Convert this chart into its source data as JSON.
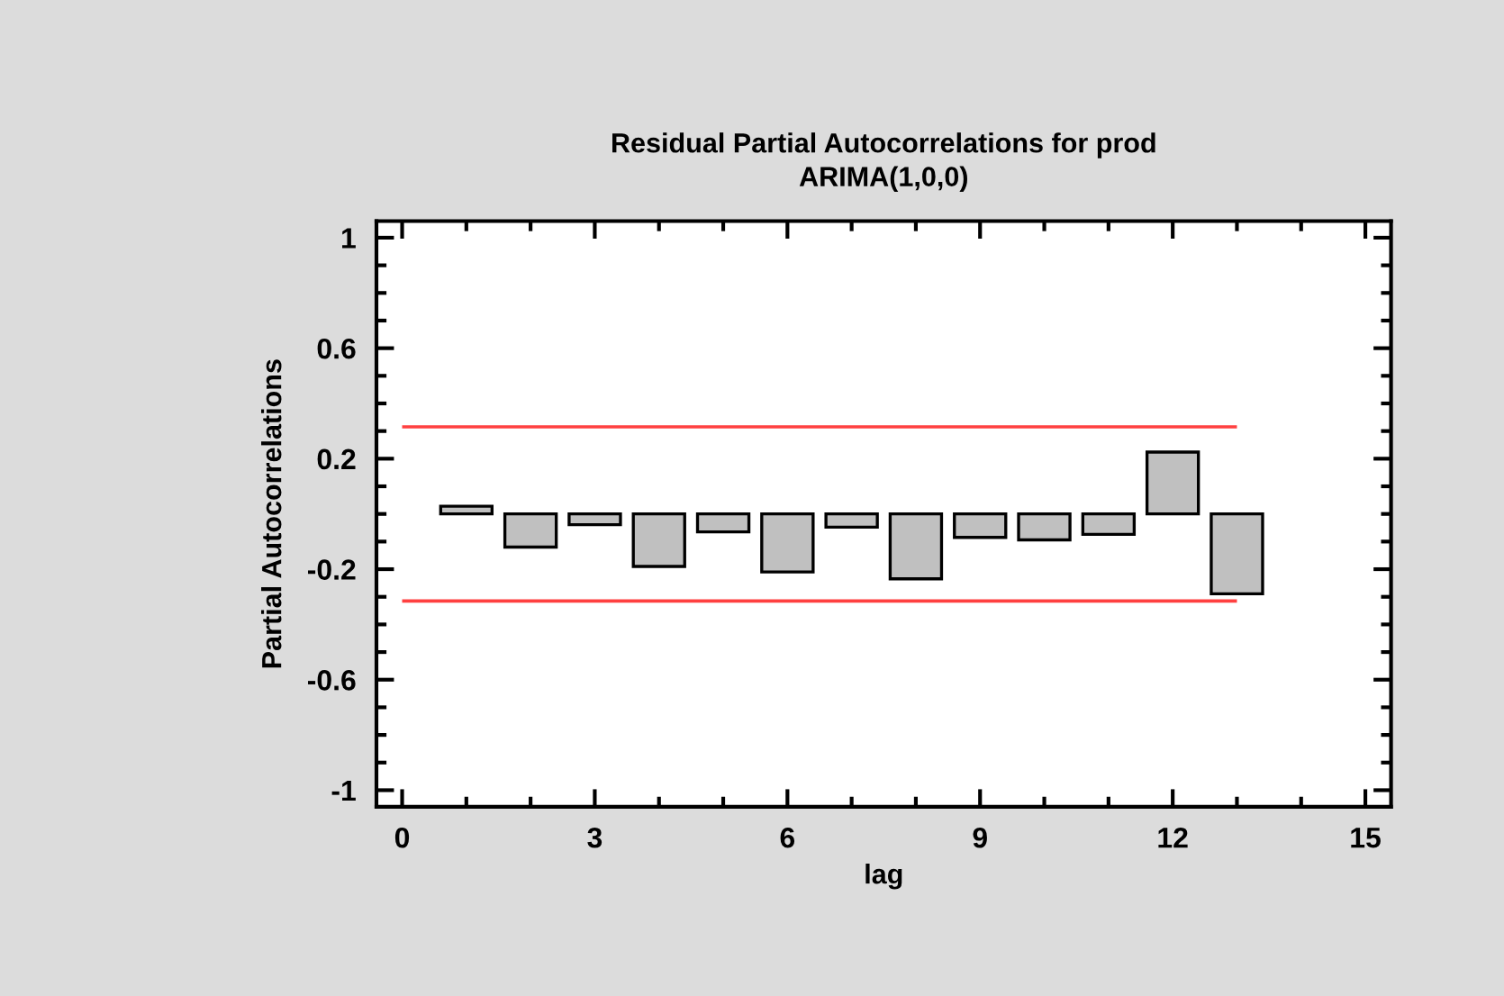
{
  "chart_data": {
    "type": "bar",
    "title": "Residual Partial Autocorrelations for prod\nARIMA(1,0,0)",
    "xlabel": "lag",
    "ylabel": "Partial Autocorrelations",
    "x": [
      1,
      2,
      3,
      4,
      5,
      6,
      7,
      8,
      9,
      10,
      11,
      12,
      13
    ],
    "series": [
      {
        "color": "#c0c0c0",
        "values": [
          0.028,
          -0.12,
          -0.039,
          -0.19,
          -0.065,
          -0.21,
          -0.048,
          -0.235,
          -0.085,
          -0.094,
          -0.074,
          0.224,
          -0.289
        ]
      }
    ],
    "ref_lines": [
      {
        "axis": "y",
        "value": 0.315,
        "color": "#ff4040"
      },
      {
        "axis": "y",
        "value": -0.315,
        "color": "#ff4040"
      }
    ],
    "xlim": [
      -0.4,
      15.4
    ],
    "ylim": [
      -1.06,
      1.06
    ],
    "xticks": [
      0,
      {
        "value": 1,
        "label": null
      },
      {
        "value": 2,
        "label": null
      },
      3,
      {
        "value": 4,
        "label": null
      },
      {
        "value": 5,
        "label": null
      },
      6,
      {
        "value": 7,
        "label": null
      },
      {
        "value": 8,
        "label": null
      },
      9,
      {
        "value": 10,
        "label": null
      },
      {
        "value": 11,
        "label": null
      },
      12,
      {
        "value": 13,
        "label": null
      },
      {
        "value": 14,
        "label": null
      },
      15
    ],
    "yticks": [
      -1,
      {
        "value": -0.9,
        "label": null
      },
      {
        "value": -0.8,
        "label": null
      },
      {
        "value": -0.7,
        "label": null
      },
      -0.6,
      {
        "value": -0.5,
        "label": null
      },
      {
        "value": -0.4,
        "label": null
      },
      {
        "value": -0.3,
        "label": null
      },
      -0.2,
      {
        "value": -0.1,
        "label": null
      },
      {
        "value": 0,
        "label": null
      },
      {
        "value": 0.1,
        "label": null
      },
      0.2,
      {
        "value": 0.3,
        "label": null
      },
      {
        "value": 0.4,
        "label": null
      },
      {
        "value": 0.5,
        "label": null
      },
      0.6,
      {
        "value": 0.7,
        "label": null
      },
      {
        "value": 0.8,
        "label": null
      },
      {
        "value": 0.9,
        "label": null
      },
      1
    ],
    "grid": false,
    "legend": false
  }
}
